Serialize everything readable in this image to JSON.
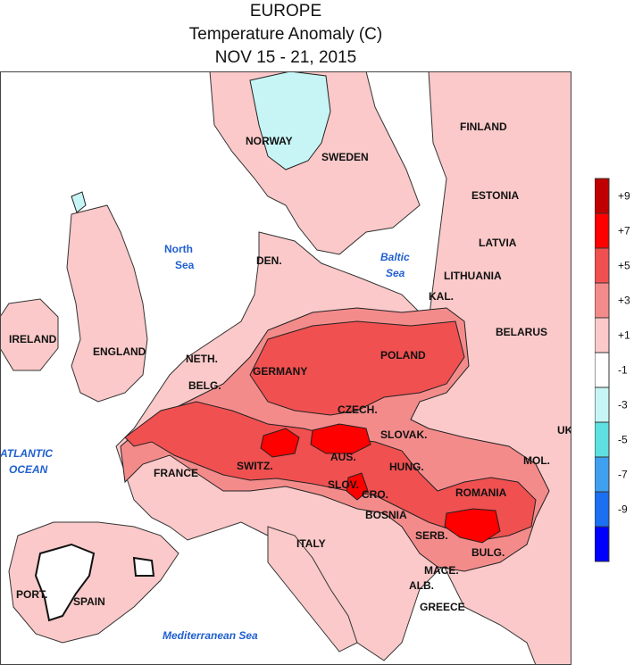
{
  "header": {
    "region": "EUROPE",
    "variable": "Temperature Anomaly (C)",
    "period": "NOV 15 - 21, 2015"
  },
  "countries": [
    {
      "id": "norway",
      "label": "NORWAY"
    },
    {
      "id": "sweden",
      "label": "SWEDEN"
    },
    {
      "id": "finland",
      "label": "FINLAND"
    },
    {
      "id": "estonia",
      "label": "ESTONIA"
    },
    {
      "id": "latvia",
      "label": "LATVIA"
    },
    {
      "id": "lithuania",
      "label": "LITHUANIA"
    },
    {
      "id": "kal",
      "label": "KAL."
    },
    {
      "id": "den",
      "label": "DEN."
    },
    {
      "id": "belarus",
      "label": "BELARUS"
    },
    {
      "id": "ireland",
      "label": "IRELAND"
    },
    {
      "id": "england",
      "label": "ENGLAND"
    },
    {
      "id": "neth",
      "label": "NETH."
    },
    {
      "id": "belg",
      "label": "BELG."
    },
    {
      "id": "germany",
      "label": "GERMANY"
    },
    {
      "id": "poland",
      "label": "POLAND"
    },
    {
      "id": "czech",
      "label": "CZECH."
    },
    {
      "id": "slovak",
      "label": "SLOVAK."
    },
    {
      "id": "uk",
      "label": "UK"
    },
    {
      "id": "france",
      "label": "FRANCE"
    },
    {
      "id": "switz",
      "label": "SWITZ."
    },
    {
      "id": "aus",
      "label": "AUS."
    },
    {
      "id": "hung",
      "label": "HUNG."
    },
    {
      "id": "mol",
      "label": "MOL."
    },
    {
      "id": "slov",
      "label": "SLOV."
    },
    {
      "id": "cro",
      "label": "CRO."
    },
    {
      "id": "romania",
      "label": "ROMANIA"
    },
    {
      "id": "bosnia",
      "label": "BOSNIA"
    },
    {
      "id": "serb",
      "label": "SERB."
    },
    {
      "id": "bulg",
      "label": "BULG."
    },
    {
      "id": "italy",
      "label": "ITALY"
    },
    {
      "id": "mace",
      "label": "MACE."
    },
    {
      "id": "alb",
      "label": "ALB."
    },
    {
      "id": "greece",
      "label": "GREECE"
    },
    {
      "id": "port",
      "label": "PORT."
    },
    {
      "id": "spain",
      "label": "SPAIN"
    }
  ],
  "seas": {
    "north_sea": {
      "line1": "North",
      "line2": "Sea"
    },
    "baltic_sea": {
      "line1": "Baltic",
      "line2": "Sea"
    },
    "atlantic": {
      "line1": "ATLANTIC",
      "line2": "OCEAN"
    },
    "mediterranean": {
      "label": "Mediterranean Sea"
    }
  },
  "legend": {
    "bins": [
      {
        "color": "#c00000"
      },
      {
        "color": "#ff0000"
      },
      {
        "color": "#f05050"
      },
      {
        "color": "#f48b8b"
      },
      {
        "color": "#fbc9c9"
      },
      {
        "color": "#ffffff"
      },
      {
        "color": "#c7f5f5"
      },
      {
        "color": "#5ee0e0"
      },
      {
        "color": "#3fa0f0"
      },
      {
        "color": "#1c6ff0"
      },
      {
        "color": "#0000ff"
      }
    ],
    "labels": [
      "+9",
      "+7",
      "+5",
      "+3",
      "+1",
      "-1",
      "-3",
      "-5",
      "-7",
      "-9"
    ]
  }
}
